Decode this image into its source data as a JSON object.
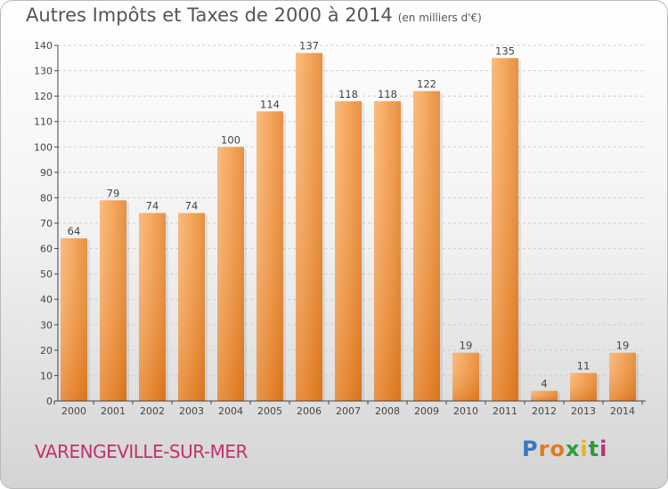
{
  "title": "Autres Impôts et Taxes de 2000 à 2014",
  "unit_label": "(en milliers d'€)",
  "city": "VARENGEVILLE-SUR-MER",
  "logo": {
    "text": "Proxiti",
    "letters": [
      "P",
      "r",
      "o",
      "x",
      "i",
      "t",
      "i"
    ],
    "colors": [
      "#3a78c2",
      "#e07a1f",
      "#e07a1f",
      "#2e9a3e",
      "#e6b320",
      "#2e9a3e",
      "#c0316d"
    ]
  },
  "colors": {
    "bar": "#f08b2c",
    "bar_light": "#f6aa60",
    "bar_dark": "#d9701a",
    "grid": "#cfcfcf",
    "axis": "#444444"
  },
  "chart_data": {
    "type": "bar",
    "categories": [
      "2000",
      "2001",
      "2002",
      "2003",
      "2004",
      "2005",
      "2006",
      "2007",
      "2008",
      "2009",
      "2010",
      "2011",
      "2012",
      "2013",
      "2014"
    ],
    "values": [
      64,
      79,
      74,
      74,
      100,
      114,
      137,
      118,
      118,
      122,
      19,
      135,
      4,
      11,
      19
    ],
    "ylim": [
      0,
      140
    ],
    "yticks": [
      0,
      10,
      20,
      30,
      40,
      50,
      60,
      70,
      80,
      90,
      100,
      110,
      120,
      130,
      140
    ],
    "grid": true,
    "title": "Autres Impôts et Taxes de 2000 à 2014",
    "xlabel": "",
    "ylabel": ""
  }
}
